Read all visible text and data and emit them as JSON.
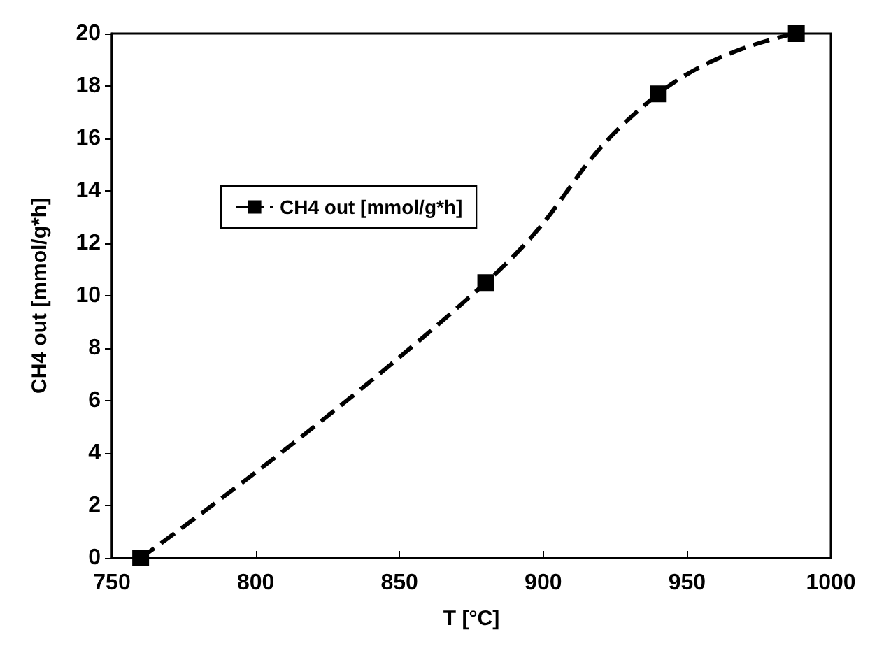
{
  "chart_data": {
    "type": "line",
    "xlabel": "T [°C]",
    "ylabel": "CH4 out [mmol/g*h]",
    "x": [
      760,
      880,
      940,
      988
    ],
    "series": [
      {
        "name": "CH4 out [mmol/g*h]",
        "color": "#000000",
        "values": [
          0,
          10.5,
          17.7,
          20
        ]
      }
    ],
    "xlim": [
      750,
      1000
    ],
    "xticks": [
      750,
      800,
      850,
      900,
      950,
      1000
    ],
    "ylim": [
      0,
      20
    ],
    "yticks": [
      0,
      2,
      4,
      6,
      8,
      10,
      12,
      14,
      16,
      18,
      20
    ],
    "grid": false,
    "legend": "top left",
    "marker": "square",
    "line_style": "dashed"
  }
}
